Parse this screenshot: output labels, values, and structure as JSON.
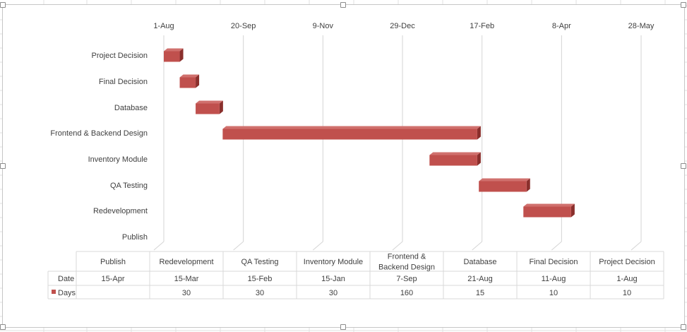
{
  "chart_data": {
    "type": "bar",
    "orientation": "horizontal",
    "stacked": true,
    "style": "3d",
    "title": "",
    "xlabel": "",
    "ylabel": "",
    "date_axis_ticks": [
      "1-Aug",
      "20-Sep",
      "9-Nov",
      "29-Dec",
      "17-Feb",
      "8-Apr",
      "28-May"
    ],
    "categories": [
      "Publish",
      "Redevelopment",
      "QA Testing",
      "Inventory Module",
      "Frontend & Backend Design",
      "Database",
      "Final Decision",
      "Project Decision"
    ],
    "series": [
      {
        "name": "Date",
        "hidden_in_plot": true,
        "labels": [
          "15-Apr",
          "15-Mar",
          "15-Feb",
          "15-Jan",
          "7-Sep",
          "21-Aug",
          "11-Aug",
          "1-Aug"
        ]
      },
      {
        "name": "Days",
        "color": "#c0504d",
        "values": [
          null,
          30,
          30,
          30,
          160,
          15,
          10,
          10
        ],
        "labels": [
          "",
          "30",
          "30",
          "30",
          "160",
          "15",
          "10",
          "10"
        ]
      }
    ],
    "gridlines": true,
    "legend": "data-table",
    "data_table": true
  },
  "colors": {
    "bar_front": "#c0504d",
    "bar_top": "#d0706d",
    "bar_side": "#8a2f2c",
    "gridline": "#d4d4d4",
    "text": "#404040",
    "table_border": "#d9d9d9"
  }
}
